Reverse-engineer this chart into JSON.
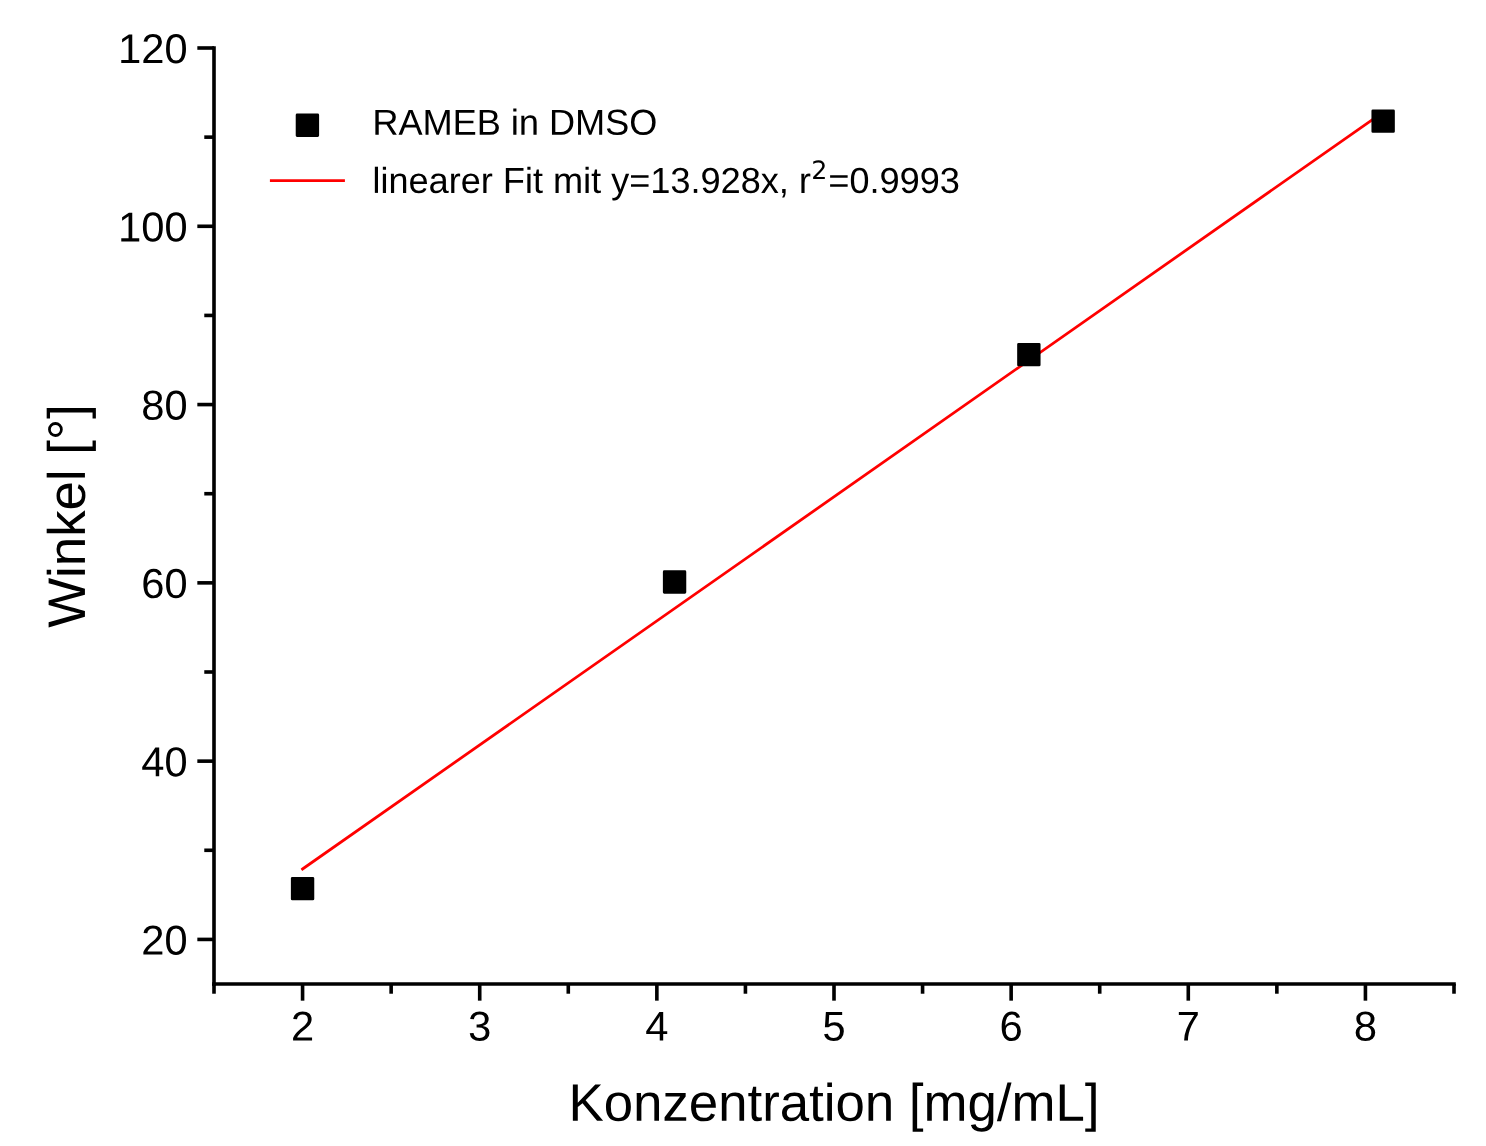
{
  "chart_data": {
    "type": "scatter",
    "xlabel": "Konzentration [mg/mL]",
    "ylabel": "Winkel [°]",
    "xlim": [
      1.5,
      8.5
    ],
    "xticks": [
      2,
      3,
      4,
      5,
      6,
      7,
      8
    ],
    "ylim": [
      15,
      120
    ],
    "yticks": [
      20,
      40,
      60,
      80,
      100,
      120
    ],
    "grid": false,
    "legend": "top left",
    "series": [
      {
        "name": "RAMEB in DMSO",
        "color": "#000000",
        "marker": "square",
        "x": [
          2,
          4.1,
          6.1,
          8.1
        ],
        "values": [
          25.7,
          60.1,
          85.6,
          111.8
        ]
      },
      {
        "name": "linearer Fit mit y=13.928x, r$^{2}$=0.9993",
        "type": "line",
        "marker": "none",
        "color": "#ff0000",
        "line_style": "solid",
        "x": [
          2,
          8.1
        ],
        "values": [
          27.9,
          112.8
        ]
      }
    ]
  }
}
